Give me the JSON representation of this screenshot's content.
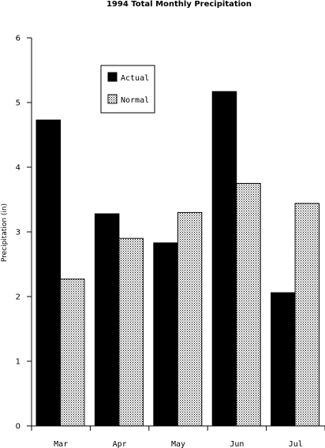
{
  "chart_data": {
    "type": "bar",
    "title": "1994 Total Monthly Precipitation",
    "xlabel": "",
    "ylabel": "Precipitation (in)",
    "ylim": [
      0,
      6
    ],
    "yticks": [
      "0",
      "1",
      "2",
      "3",
      "4",
      "5",
      "6"
    ],
    "categories": [
      "Mar",
      "Apr",
      "May",
      "Jun",
      "Jul"
    ],
    "series": [
      {
        "name": "Actual",
        "values": [
          4.73,
          3.28,
          2.83,
          5.17,
          2.06
        ],
        "color": "#000000",
        "pattern": "solid"
      },
      {
        "name": "Normal",
        "values": [
          2.27,
          2.9,
          3.3,
          3.75,
          3.44
        ],
        "color": "#ffffff",
        "pattern": "dotted"
      }
    ],
    "grid": false,
    "legend": "top-left"
  }
}
